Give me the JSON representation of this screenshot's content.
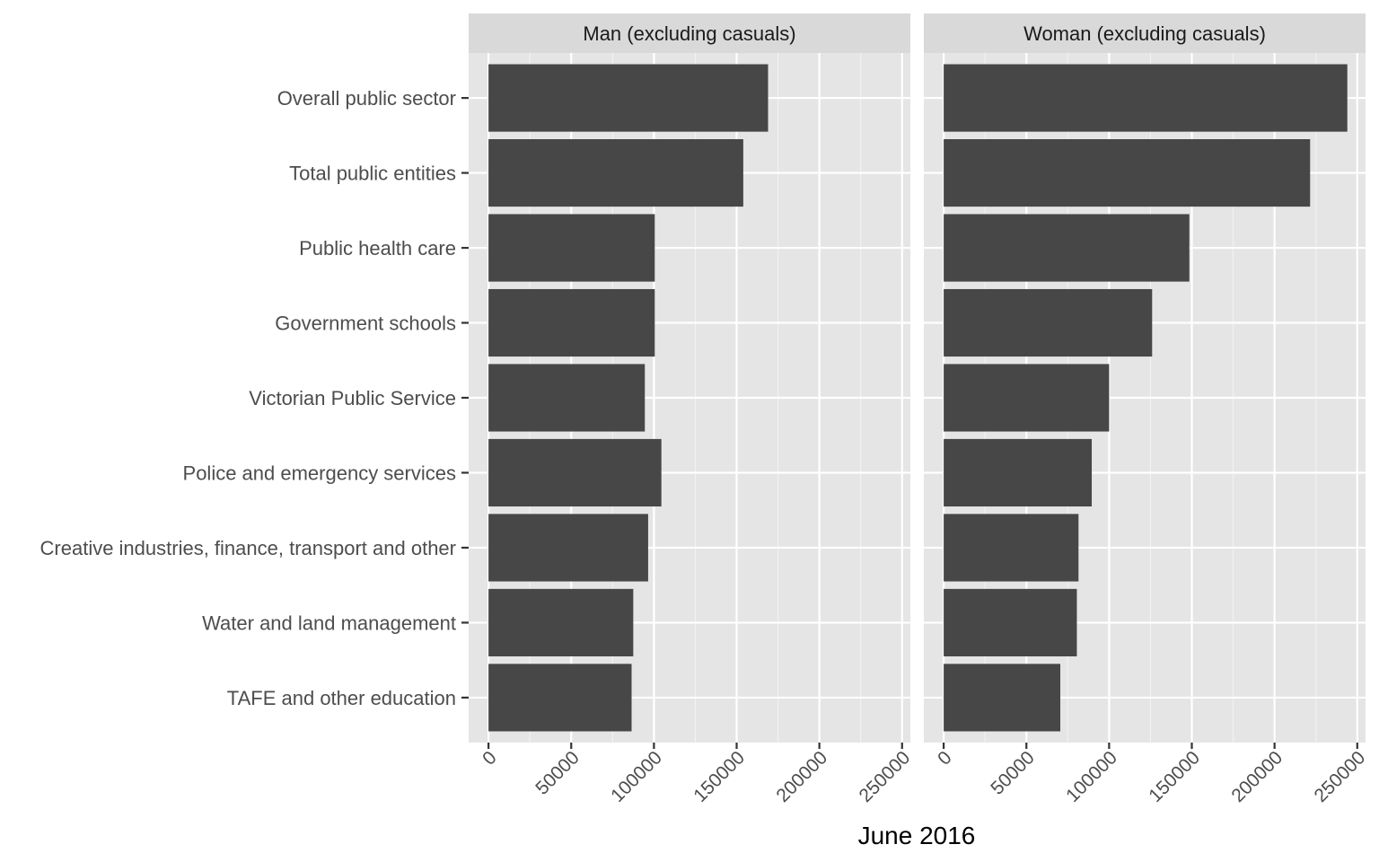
{
  "chart_data": {
    "type": "bar",
    "orientation": "horizontal",
    "xlabel": "June 2016",
    "ylabel": "",
    "xlim": [
      -12000,
      255000
    ],
    "x_ticks": [
      0,
      50000,
      100000,
      150000,
      200000,
      250000
    ],
    "x_tick_labels": [
      "0",
      "50000",
      "100000",
      "150000",
      "200000",
      "250000"
    ],
    "grid": true,
    "legend": "none",
    "bar_color": "#474747",
    "categories": [
      "Overall public sector",
      "Total public entities",
      "Public health care",
      "Government schools",
      "Victorian Public Service",
      "Police and emergency services",
      "Creative industries, finance, transport and other",
      "Water and land management",
      "TAFE and other education"
    ],
    "facets": [
      {
        "name": "Man (excluding casuals)",
        "values": [
          169000,
          154000,
          100500,
          100500,
          94500,
          104500,
          96500,
          87500,
          86500
        ]
      },
      {
        "name": "Woman (excluding casuals)",
        "values": [
          244000,
          221500,
          148500,
          126000,
          100000,
          89500,
          81500,
          80500,
          70500
        ]
      }
    ]
  }
}
